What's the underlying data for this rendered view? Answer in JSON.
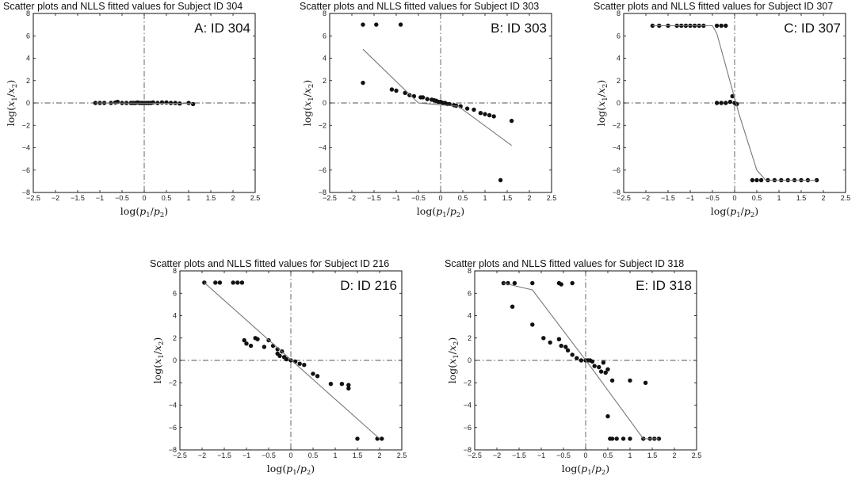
{
  "chart_data": [
    {
      "type": "scatter",
      "title": "Scatter plots and NLLS fitted values for Subject ID 304",
      "panel_label": "A: ID 304",
      "xlabel": "log(p1/p2)",
      "ylabel": "log(x1/x2)",
      "xlim": [
        -2.5,
        2.5
      ],
      "ylim": [
        -8,
        8
      ],
      "xticks": [
        "-2.5",
        "-2",
        "-1.5",
        "-1",
        "-0.5",
        "0",
        "0.5",
        "1",
        "1.5",
        "2",
        "2.5"
      ],
      "yticks": [
        "-8",
        "-6",
        "-4",
        "-2",
        "0",
        "2",
        "4",
        "6",
        "8"
      ],
      "series": [
        {
          "type": "scatter",
          "points": [
            [
              -1.1,
              0
            ],
            [
              -1.0,
              0
            ],
            [
              -0.9,
              0
            ],
            [
              -0.75,
              0
            ],
            [
              -0.65,
              0.05
            ],
            [
              -0.6,
              0.1
            ],
            [
              -0.5,
              0
            ],
            [
              -0.4,
              0
            ],
            [
              -0.3,
              0
            ],
            [
              -0.25,
              0
            ],
            [
              -0.2,
              0
            ],
            [
              -0.15,
              0.05
            ],
            [
              -0.1,
              0
            ],
            [
              -0.05,
              0
            ],
            [
              0,
              0
            ],
            [
              0.05,
              0
            ],
            [
              0.1,
              0
            ],
            [
              0.15,
              0
            ],
            [
              0.2,
              0.05
            ],
            [
              0.3,
              0
            ],
            [
              0.4,
              0.05
            ],
            [
              0.5,
              0.05
            ],
            [
              0.6,
              0
            ],
            [
              0.7,
              0
            ],
            [
              0.8,
              -0.05
            ],
            [
              1.0,
              0
            ],
            [
              1.1,
              -0.1
            ]
          ]
        },
        {
          "type": "line",
          "points": [
            [
              -1.1,
              0
            ],
            [
              1.1,
              -0.05
            ]
          ]
        }
      ]
    },
    {
      "type": "scatter",
      "title": "Scatter plots and NLLS fitted values for Subject ID 303",
      "panel_label": "B: ID 303",
      "xlabel": "log(p1/p2)",
      "ylabel": "log(x1/x2)",
      "xlim": [
        -2.5,
        2.5
      ],
      "ylim": [
        -8,
        8
      ],
      "xticks": [
        "-2.5",
        "-2",
        "-1.5",
        "-1",
        "-0.5",
        "0",
        "0.5",
        "1",
        "1.5",
        "2",
        "2.5"
      ],
      "yticks": [
        "-8",
        "-6",
        "-4",
        "-2",
        "0",
        "2",
        "4",
        "6",
        "8"
      ],
      "series": [
        {
          "type": "scatter",
          "points": [
            [
              -1.75,
              7
            ],
            [
              -1.45,
              7
            ],
            [
              -0.9,
              7
            ],
            [
              -1.75,
              1.8
            ],
            [
              -1.1,
              1.2
            ],
            [
              -1.0,
              1.1
            ],
            [
              -0.8,
              0.9
            ],
            [
              -0.7,
              0.7
            ],
            [
              -0.6,
              0.6
            ],
            [
              -0.45,
              0.5
            ],
            [
              -0.4,
              0.5
            ],
            [
              -0.3,
              0.35
            ],
            [
              -0.2,
              0.3
            ],
            [
              -0.15,
              0.25
            ],
            [
              -0.1,
              0.2
            ],
            [
              -0.05,
              0.1
            ],
            [
              0,
              0.1
            ],
            [
              0.05,
              0
            ],
            [
              0.1,
              0
            ],
            [
              0.15,
              -0.1
            ],
            [
              0.2,
              -0.1
            ],
            [
              0.3,
              -0.2
            ],
            [
              0.35,
              -0.25
            ],
            [
              0.45,
              -0.3
            ],
            [
              0.6,
              -0.5
            ],
            [
              0.75,
              -0.6
            ],
            [
              0.9,
              -0.9
            ],
            [
              1.0,
              -1.0
            ],
            [
              1.1,
              -1.1
            ],
            [
              1.2,
              -1.2
            ],
            [
              1.6,
              -1.6
            ],
            [
              1.35,
              -6.9
            ]
          ]
        },
        {
          "type": "line",
          "points": [
            [
              -1.75,
              4.8
            ],
            [
              -0.5,
              0
            ],
            [
              0.4,
              -0.3
            ],
            [
              1.6,
              -3.8
            ]
          ]
        }
      ]
    },
    {
      "type": "scatter",
      "title": "Scatter plots and NLLS fitted values for Subject ID 307",
      "panel_label": "C: ID 307",
      "xlabel": "log(p1/p2)",
      "ylabel": "log(x1/x2)",
      "xlim": [
        -2.5,
        2.5
      ],
      "ylim": [
        -8,
        8
      ],
      "xticks": [
        "-2.5",
        "-2",
        "-1.5",
        "-1",
        "-0.5",
        "0",
        "0.5",
        "1",
        "1.5",
        "2",
        "2.5"
      ],
      "yticks": [
        "-8",
        "-6",
        "-4",
        "-2",
        "0",
        "2",
        "4",
        "6",
        "8"
      ],
      "series": [
        {
          "type": "scatter",
          "points": [
            [
              -1.85,
              6.9
            ],
            [
              -1.7,
              6.9
            ],
            [
              -1.5,
              6.9
            ],
            [
              -1.3,
              6.9
            ],
            [
              -1.2,
              6.9
            ],
            [
              -1.1,
              6.9
            ],
            [
              -1.0,
              6.9
            ],
            [
              -0.9,
              6.9
            ],
            [
              -0.8,
              6.9
            ],
            [
              -0.7,
              6.9
            ],
            [
              -0.4,
              6.9
            ],
            [
              -0.3,
              6.9
            ],
            [
              -0.2,
              6.9
            ],
            [
              -0.4,
              0
            ],
            [
              -0.3,
              0
            ],
            [
              -0.2,
              0
            ],
            [
              -0.1,
              0.1
            ],
            [
              -0.05,
              0.6
            ],
            [
              0,
              0
            ],
            [
              0.05,
              -0.1
            ],
            [
              0.4,
              -6.9
            ],
            [
              0.5,
              -6.9
            ],
            [
              0.6,
              -6.9
            ],
            [
              0.75,
              -6.9
            ],
            [
              0.9,
              -6.9
            ],
            [
              1.05,
              -6.9
            ],
            [
              1.2,
              -6.9
            ],
            [
              1.35,
              -6.9
            ],
            [
              1.5,
              -6.9
            ],
            [
              1.65,
              -6.9
            ],
            [
              1.85,
              -6.9
            ]
          ]
        },
        {
          "type": "line",
          "points": [
            [
              -1.85,
              6.9
            ],
            [
              -0.5,
              6.9
            ],
            [
              -0.4,
              6.2
            ],
            [
              0.1,
              -1
            ],
            [
              0.5,
              -6
            ],
            [
              0.7,
              -6.9
            ],
            [
              1.85,
              -6.9
            ]
          ]
        }
      ]
    },
    {
      "type": "scatter",
      "title": "Scatter plots and NLLS fitted values for Subject ID 216",
      "panel_label": "D: ID 216",
      "xlabel": "log(p1/p2)",
      "ylabel": "log(x1/x2)",
      "xlim": [
        -2.5,
        2.5
      ],
      "ylim": [
        -8,
        8
      ],
      "xticks": [
        "-2.5",
        "-2",
        "-1.5",
        "-1",
        "-0.5",
        "0",
        "0.5",
        "1",
        "1.5",
        "2",
        "2.5"
      ],
      "yticks": [
        "-8",
        "-6",
        "-4",
        "-2",
        "0",
        "2",
        "4",
        "6",
        "8"
      ],
      "series": [
        {
          "type": "scatter",
          "points": [
            [
              -1.95,
              6.95
            ],
            [
              -1.7,
              6.95
            ],
            [
              -1.6,
              6.95
            ],
            [
              -1.3,
              6.95
            ],
            [
              -1.2,
              6.95
            ],
            [
              -1.1,
              6.95
            ],
            [
              -1.05,
              1.8
            ],
            [
              -1.0,
              1.5
            ],
            [
              -0.9,
              1.3
            ],
            [
              -0.8,
              2.0
            ],
            [
              -0.75,
              1.9
            ],
            [
              -0.6,
              1.2
            ],
            [
              -0.5,
              1.8
            ],
            [
              -0.4,
              1.3
            ],
            [
              -0.3,
              1.0
            ],
            [
              -0.2,
              0.8
            ],
            [
              -0.3,
              0.6
            ],
            [
              -0.25,
              0.4
            ],
            [
              -0.15,
              0.3
            ],
            [
              -0.1,
              0.1
            ],
            [
              0,
              0
            ],
            [
              0.1,
              -0.1
            ],
            [
              0.2,
              -0.3
            ],
            [
              0.3,
              -0.4
            ],
            [
              0.5,
              -1.2
            ],
            [
              0.6,
              -1.4
            ],
            [
              0.9,
              -2.1
            ],
            [
              1.15,
              -2.1
            ],
            [
              1.3,
              -2.2
            ],
            [
              1.3,
              -2.5
            ],
            [
              1.5,
              -7.0
            ],
            [
              1.95,
              -7.0
            ],
            [
              2.05,
              -7.0
            ]
          ]
        },
        {
          "type": "line",
          "points": [
            [
              -1.95,
              6.95
            ],
            [
              2.0,
              -7.0
            ]
          ]
        }
      ]
    },
    {
      "type": "scatter",
      "title": "Scatter plots and NLLS fitted values for Subject ID 318",
      "panel_label": "E: ID 318",
      "xlabel": "log(p1/p2)",
      "ylabel": "log(x1/x2)",
      "xlim": [
        -2.5,
        2.5
      ],
      "ylim": [
        -8,
        8
      ],
      "xticks": [
        "-2.5",
        "-2",
        "-1.5",
        "-1",
        "-0.5",
        "0",
        "0.5",
        "1",
        "1.5",
        "2",
        "2.5"
      ],
      "yticks": [
        "-8",
        "-6",
        "-4",
        "-2",
        "0",
        "2",
        "4",
        "6",
        "8"
      ],
      "series": [
        {
          "type": "scatter",
          "points": [
            [
              -1.85,
              6.9
            ],
            [
              -1.75,
              6.9
            ],
            [
              -1.6,
              6.9
            ],
            [
              -1.65,
              4.8
            ],
            [
              -1.2,
              6.9
            ],
            [
              -0.6,
              6.9
            ],
            [
              -0.55,
              6.8
            ],
            [
              -0.3,
              6.9
            ],
            [
              -1.2,
              3.2
            ],
            [
              -0.95,
              2.0
            ],
            [
              -0.8,
              1.6
            ],
            [
              -0.6,
              1.9
            ],
            [
              -0.55,
              1.3
            ],
            [
              -0.45,
              1.2
            ],
            [
              -0.4,
              0.9
            ],
            [
              -0.3,
              0.5
            ],
            [
              -0.2,
              0.2
            ],
            [
              -0.1,
              0
            ],
            [
              0,
              0
            ],
            [
              0.05,
              0
            ],
            [
              0.1,
              0
            ],
            [
              0.15,
              -0.1
            ],
            [
              0.2,
              -0.5
            ],
            [
              0.3,
              -0.6
            ],
            [
              0.35,
              -1.0
            ],
            [
              0.4,
              -0.2
            ],
            [
              0.45,
              -1.1
            ],
            [
              0.5,
              -0.8
            ],
            [
              0.6,
              -1.8
            ],
            [
              0.5,
              -5.0
            ],
            [
              0.55,
              -7.0
            ],
            [
              0.6,
              -7.0
            ],
            [
              0.7,
              -7.0
            ],
            [
              0.85,
              -7.0
            ],
            [
              1.0,
              -7.0
            ],
            [
              1.3,
              -7.0
            ],
            [
              1.45,
              -7.0
            ],
            [
              1.55,
              -7.0
            ],
            [
              1.65,
              -7.0
            ],
            [
              1.0,
              -1.8
            ],
            [
              1.35,
              -2.0
            ]
          ]
        },
        {
          "type": "line",
          "points": [
            [
              -1.85,
              6.9
            ],
            [
              -1.2,
              6.3
            ],
            [
              0.1,
              -0.5
            ],
            [
              1.3,
              -7.0
            ],
            [
              1.65,
              -7.0
            ]
          ]
        }
      ]
    }
  ]
}
